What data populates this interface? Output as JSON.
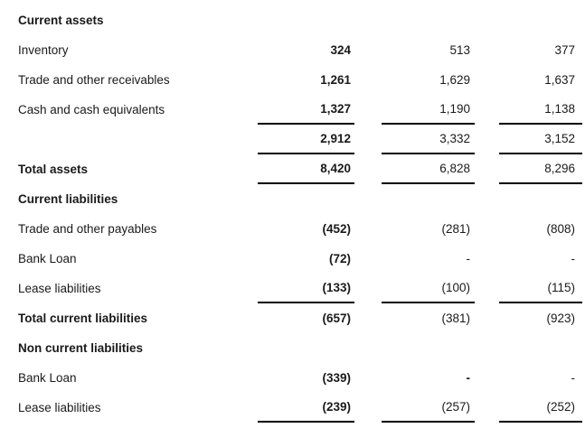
{
  "document": {
    "type": "financial-statement-extract",
    "colors": {
      "background": "#ffffff",
      "text": "#1a1a1a",
      "rule": "#000000"
    },
    "columns": {
      "count": 3,
      "col1_style": "bold",
      "col2_style": "regular",
      "col3_style": "regular"
    },
    "rows": [
      {
        "style": "section",
        "label": "Current assets",
        "c1": "",
        "c2": "",
        "c3": "",
        "underline": false
      },
      {
        "style": "item",
        "label": "Inventory",
        "c1": "324",
        "c2": "513",
        "c3": "377",
        "underline": false
      },
      {
        "style": "item",
        "label": "Trade and other receivables",
        "c1": "1,261",
        "c2": "1,629",
        "c3": "1,637",
        "underline": false
      },
      {
        "style": "item",
        "label": "Cash and cash equivalents",
        "c1": "1,327",
        "c2": "1,190",
        "c3": "1,138",
        "underline": true
      },
      {
        "style": "item",
        "label": "",
        "c1": "2,912",
        "c2": "3,332",
        "c3": "3,152",
        "underline": true
      },
      {
        "style": "total",
        "label": "Total assets",
        "c1": "8,420",
        "c2": "6,828",
        "c3": "8,296",
        "underline": true
      },
      {
        "style": "section",
        "label": "Current liabilities",
        "c1": "",
        "c2": "",
        "c3": "",
        "underline": false
      },
      {
        "style": "item",
        "label": "Trade and other payables",
        "c1": "(452)",
        "c2": "(281)",
        "c3": "(808)",
        "underline": false
      },
      {
        "style": "item",
        "label": "Bank Loan",
        "c1": "(72)",
        "c2": "-",
        "c3": "-",
        "underline": false
      },
      {
        "style": "item",
        "label": "Lease liabilities",
        "c1": "(133)",
        "c2": "(100)",
        "c3": "(115)",
        "underline": true
      },
      {
        "style": "total",
        "label": "Total current liabilities",
        "c1": "(657)",
        "c2": "(381)",
        "c3": "(923)",
        "underline": false
      },
      {
        "style": "section",
        "label": "Non current liabilities",
        "c1": "",
        "c2": "",
        "c3": "",
        "underline": false
      },
      {
        "style": "item",
        "label": "Bank Loan",
        "c1": "(339)",
        "c2": "-",
        "c3": "-",
        "underline": false,
        "c2_bold": true
      },
      {
        "style": "item",
        "label": "Lease liabilities",
        "c1": "(239)",
        "c2": "(257)",
        "c3": "(252)",
        "underline": true
      }
    ]
  }
}
